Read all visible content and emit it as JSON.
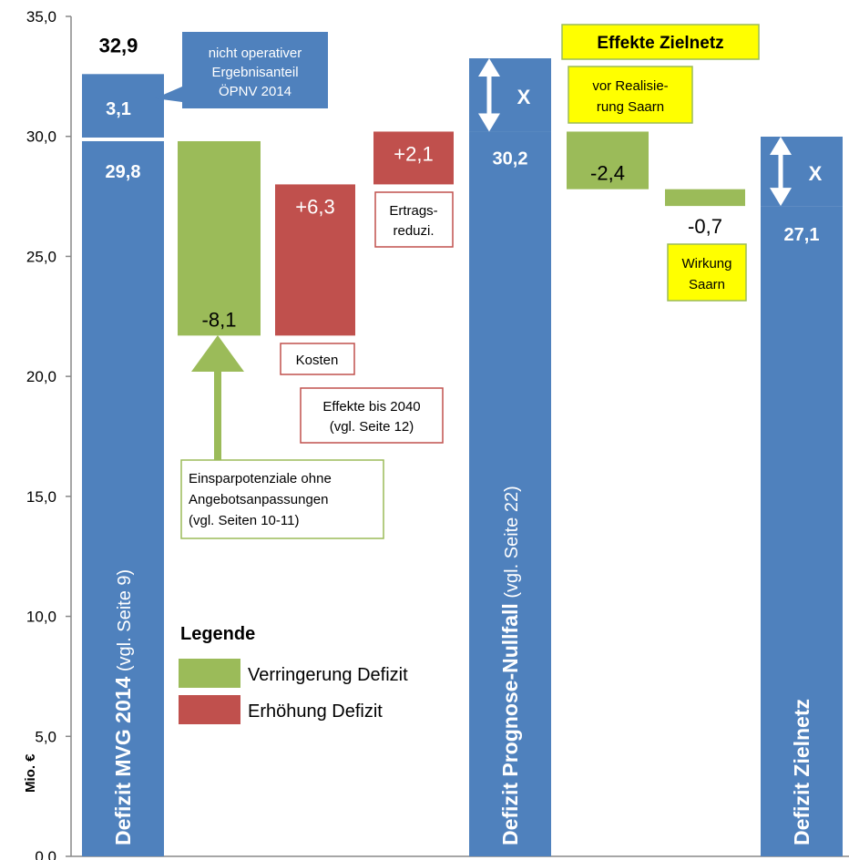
{
  "chart_data": {
    "type": "bar",
    "subtype": "waterfall",
    "ylabel": "Mio. €",
    "ylim": [
      0,
      35
    ],
    "yticks": [
      "0,0",
      "5,0",
      "10,0",
      "15,0",
      "20,0",
      "25,0",
      "30,0",
      "35,0"
    ],
    "grid": false,
    "bars": [
      {
        "id": "mvg2014",
        "kind": "total",
        "base": 0,
        "top": 29.8,
        "value_label": "29,8",
        "label_bold": "Defizit MVG 2014",
        "label_rest": " (vgl. Seite 9)",
        "stacked": {
          "value": 3.1,
          "label": "3,1",
          "total_label": "32,9"
        }
      },
      {
        "id": "einspar",
        "kind": "decrease",
        "base": 21.7,
        "top": 29.8,
        "value": -8.1,
        "value_label": "-8,1"
      },
      {
        "id": "kosten",
        "kind": "increase",
        "base": 21.7,
        "top": 28.0,
        "value": 6.3,
        "value_label": "+6,3"
      },
      {
        "id": "ertrag",
        "kind": "increase",
        "base": 28.0,
        "top": 30.2,
        "value": 2.1,
        "value_label": "+2,1"
      },
      {
        "id": "nullfall",
        "kind": "total",
        "base": 0,
        "top": 30.2,
        "value_label": "30,2",
        "label_bold": "Defizit Prognose-Nullfall",
        "label_rest": " (vgl. Seite 22)",
        "marker": "X"
      },
      {
        "id": "zielnetz_vor",
        "kind": "decrease",
        "base": 27.8,
        "top": 30.2,
        "value": -2.4,
        "value_label": "-2,4"
      },
      {
        "id": "saarn",
        "kind": "decrease",
        "base": 27.1,
        "top": 27.8,
        "value": -0.7,
        "value_label": "-0,7"
      },
      {
        "id": "zielnetz",
        "kind": "total",
        "base": 0,
        "top": 27.1,
        "value_label": "27,1",
        "label_bold": "Defizit Zielnetz",
        "label_rest": "",
        "marker": "X"
      }
    ],
    "annotations": {
      "nicht_operativ": [
        "nicht operativer",
        "Ergebnisanteil",
        "ÖPNV 2014"
      ],
      "einspar": [
        "Einsparpotenziale ohne",
        "Angebotsanpassungen",
        "(vgl. Seiten 10-11)"
      ],
      "kosten": [
        "Kosten"
      ],
      "effekte2040": [
        "Effekte bis 2040",
        "(vgl. Seite 12)"
      ],
      "ertrag": [
        "Ertrags-",
        "reduzi."
      ],
      "effekte_zielnetz": [
        "Effekte Zielnetz"
      ],
      "vor_realisierung": [
        "vor Realisie-",
        "rung Saarn"
      ],
      "wirkung_saarn": [
        "Wirkung",
        "Saarn"
      ]
    },
    "legend": {
      "title": "Legende",
      "items": [
        {
          "label": "Verringerung Defizit",
          "color": "#9bbb59"
        },
        {
          "label": "Erhöhung Defizit",
          "color": "#c0504d"
        }
      ]
    },
    "colors": {
      "total": "#4f81bd",
      "decrease": "#9bbb59",
      "increase": "#c0504d",
      "highlight": "#ffff00"
    }
  }
}
